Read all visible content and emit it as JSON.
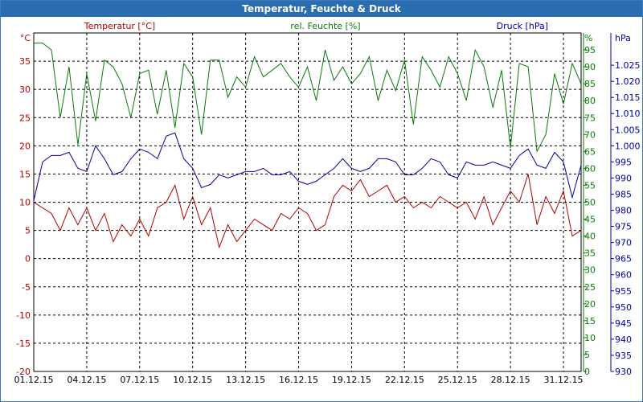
{
  "window": {
    "title": "Temperatur, Feuchte & Druck"
  },
  "colors": {
    "temperature": "#b00000",
    "humidity": "#0a7a0a",
    "pressure": "#0000a0",
    "grid": "#000000",
    "title_bg": "#2a6db0"
  },
  "chart_data": {
    "type": "line",
    "title": "Temperatur, Feuchte & Druck",
    "x_ticks": [
      "01.12.15",
      "04.12.15",
      "07.12.15",
      "10.12.15",
      "13.12.15",
      "16.12.15",
      "19.12.15",
      "22.12.15",
      "25.12.15",
      "28.12.15",
      "31.12.15"
    ],
    "x_range_days": [
      0,
      31
    ],
    "axes": {
      "temperature": {
        "label": "Temperatur [°C]",
        "unit": "°C",
        "ylim": [
          -20,
          40
        ],
        "ticks": [
          "35",
          "30",
          "25",
          "20",
          "15",
          "10",
          "5",
          "0",
          "-5",
          "-10",
          "-15",
          "-20"
        ]
      },
      "humidity": {
        "label": "rel. Feuchte [%]",
        "unit": "%",
        "ylim": [
          0,
          100
        ],
        "ticks": [
          "95",
          "90",
          "85",
          "80",
          "75",
          "70",
          "65",
          "60",
          "55",
          "50",
          "45",
          "40",
          "35",
          "30",
          "25",
          "20",
          "15",
          "10",
          "5",
          "0"
        ]
      },
      "pressure": {
        "label": "Druck [hPa]",
        "unit": "hPa",
        "ylim": [
          930,
          1035
        ],
        "ticks": [
          "1.025",
          "1.020",
          "1.015",
          "1.010",
          "1.005",
          "1.000",
          "995",
          "990",
          "985",
          "980",
          "975",
          "970",
          "965",
          "960",
          "955",
          "950",
          "945",
          "940",
          "935",
          "930"
        ]
      }
    },
    "series": [
      {
        "name": "Temperatur",
        "axis": "temperature",
        "x": [
          0,
          0.5,
          1,
          1.5,
          2,
          2.5,
          3,
          3.5,
          4,
          4.5,
          5,
          5.5,
          6,
          6.5,
          7,
          7.5,
          8,
          8.5,
          9,
          9.5,
          10,
          10.5,
          11,
          11.5,
          12,
          12.5,
          13,
          13.5,
          14,
          14.5,
          15,
          15.5,
          16,
          16.5,
          17,
          17.5,
          18,
          18.5,
          19,
          19.5,
          20,
          20.5,
          21,
          21.5,
          22,
          22.5,
          23,
          23.5,
          24,
          24.5,
          25,
          25.5,
          26,
          26.5,
          27,
          27.5,
          28,
          28.5,
          29,
          29.5,
          30,
          30.5,
          31
        ],
        "y": [
          10,
          9,
          8,
          5,
          9,
          6,
          9,
          5,
          8,
          3,
          6,
          4,
          7,
          4,
          9,
          10,
          13,
          7,
          11,
          6,
          9,
          2,
          6,
          3,
          5,
          7,
          6,
          5,
          8,
          7,
          9,
          8,
          5,
          6,
          11,
          13,
          12,
          14,
          11,
          12,
          13,
          10,
          11,
          9,
          10,
          9,
          11,
          10,
          9,
          10,
          7,
          11,
          6,
          9,
          12,
          10,
          15,
          6,
          11,
          8,
          12,
          4,
          5
        ]
      },
      {
        "name": "rel. Feuchte",
        "axis": "humidity",
        "x": [
          0,
          0.5,
          1,
          1.5,
          2,
          2.5,
          3,
          3.5,
          4,
          4.5,
          5,
          5.5,
          6,
          6.5,
          7,
          7.5,
          8,
          8.5,
          9,
          9.5,
          10,
          10.5,
          11,
          11.5,
          12,
          12.5,
          13,
          13.5,
          14,
          14.5,
          15,
          15.5,
          16,
          16.5,
          17,
          17.5,
          18,
          18.5,
          19,
          19.5,
          20,
          20.5,
          21,
          21.5,
          22,
          22.5,
          23,
          23.5,
          24,
          24.5,
          25,
          25.5,
          26,
          26.5,
          27,
          27.5,
          28,
          28.5,
          29,
          29.5,
          30,
          30.5,
          31
        ],
        "y": [
          97,
          97,
          95,
          75,
          90,
          67,
          88,
          74,
          92,
          90,
          85,
          75,
          88,
          89,
          76,
          89,
          72,
          91,
          87,
          70,
          92,
          92,
          81,
          87,
          84,
          93,
          87,
          89,
          91,
          87,
          84,
          90,
          80,
          95,
          86,
          90,
          85,
          88,
          93,
          80,
          89,
          83,
          92,
          73,
          93,
          89,
          84,
          93,
          88,
          80,
          95,
          90,
          78,
          89,
          66,
          91,
          90,
          65,
          70,
          88,
          79,
          91,
          85
        ]
      },
      {
        "name": "Druck",
        "axis": "pressure",
        "x": [
          0,
          0.5,
          1,
          1.5,
          2,
          2.5,
          3,
          3.5,
          4,
          4.5,
          5,
          5.5,
          6,
          6.5,
          7,
          7.5,
          8,
          8.5,
          9,
          9.5,
          10,
          10.5,
          11,
          11.5,
          12,
          12.5,
          13,
          13.5,
          14,
          14.5,
          15,
          15.5,
          16,
          16.5,
          17,
          17.5,
          18,
          18.5,
          19,
          19.5,
          20,
          20.5,
          21,
          21.5,
          22,
          22.5,
          23,
          23.5,
          24,
          24.5,
          25,
          25.5,
          26,
          26.5,
          27,
          27.5,
          28,
          28.5,
          29,
          29.5,
          30,
          30.5,
          31
        ],
        "y": [
          983,
          995,
          997,
          997,
          998,
          993,
          992,
          1000,
          996,
          991,
          992,
          996,
          999,
          998,
          996,
          1003,
          1004,
          996,
          993,
          987,
          988,
          991,
          990,
          991,
          992,
          992,
          993,
          991,
          991,
          992,
          989,
          988,
          989,
          991,
          993,
          996,
          993,
          992,
          993,
          996,
          996,
          995,
          991,
          991,
          993,
          996,
          995,
          991,
          990,
          995,
          994,
          994,
          995,
          994,
          993,
          997,
          999,
          994,
          993,
          998,
          995,
          984,
          994
        ]
      }
    ]
  }
}
